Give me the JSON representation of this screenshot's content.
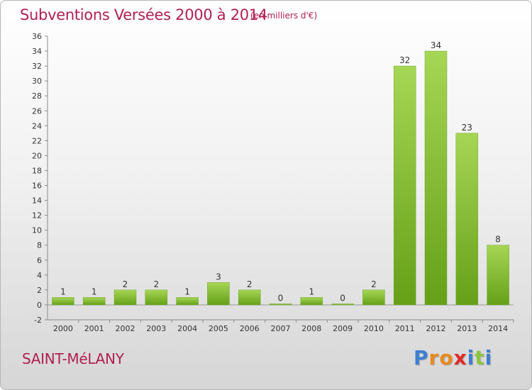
{
  "header": {
    "title": "Subventions Versées 2000 à 2014",
    "unit": "(en milliers d'€)"
  },
  "footer": {
    "town": "SAINT-MéLANY",
    "logo_text": "Proxiti"
  },
  "colors": {
    "title": "#b01f52",
    "bar_light": "#a6d655",
    "bar_dark": "#65a018",
    "logo_letters": [
      "#3d7fd1",
      "#e98a1d",
      "#e98a1d",
      "#e12b29",
      "#3d7fd1",
      "#8cc63e",
      "#3d7fd1"
    ]
  },
  "chart_data": {
    "type": "bar",
    "title": "Subventions Versées 2000 à 2014",
    "xlabel": "",
    "ylabel": "",
    "unit": "(en milliers d'€)",
    "categories": [
      "2000",
      "2001",
      "2002",
      "2003",
      "2004",
      "2005",
      "2006",
      "2007",
      "2008",
      "2009",
      "2010",
      "2011",
      "2012",
      "2013",
      "2014"
    ],
    "values": [
      1,
      1,
      2,
      2,
      1,
      3,
      2,
      0,
      1,
      0,
      2,
      32,
      34,
      23,
      8
    ],
    "ylim": [
      -2,
      36
    ],
    "yticks": [
      -2,
      0,
      2,
      4,
      6,
      8,
      10,
      12,
      14,
      16,
      18,
      20,
      22,
      24,
      26,
      28,
      30,
      32,
      34,
      36
    ],
    "grid": false,
    "legend": "none"
  }
}
